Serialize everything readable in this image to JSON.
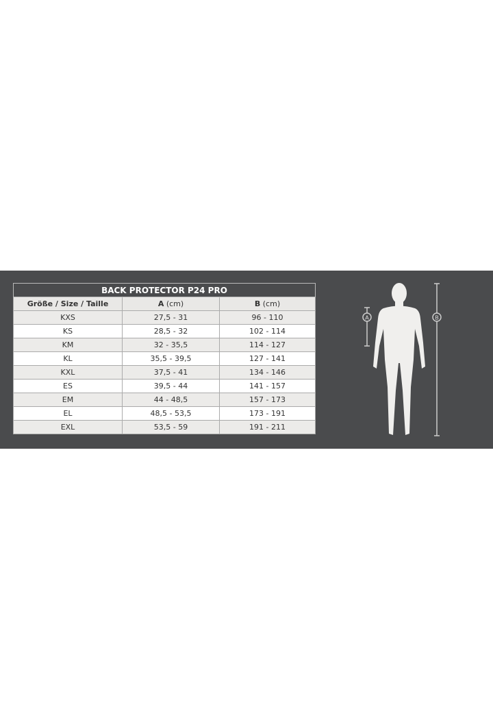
{
  "table": {
    "title": "BACK PROTECTOR P24 PRO",
    "headers": {
      "size": "Größe / Size / Taille",
      "a_bold": "A",
      "a_unit": "(cm)",
      "b_bold": "B",
      "b_unit": "(cm)"
    },
    "rows": [
      {
        "size": "KXS",
        "a": "27,5 - 31",
        "b": "96 - 110"
      },
      {
        "size": "KS",
        "a": "28,5 - 32",
        "b": "102 - 114"
      },
      {
        "size": "KM",
        "a": "32 - 35,5",
        "b": "114 - 127"
      },
      {
        "size": "KL",
        "a": "35,5 - 39,5",
        "b": "127 - 141"
      },
      {
        "size": "KXL",
        "a": "37,5 - 41",
        "b": "134 - 146"
      },
      {
        "size": "ES",
        "a": "39,5 - 44",
        "b": "141 - 157"
      },
      {
        "size": "EM",
        "a": "44 - 48,5",
        "b": "157 - 173"
      },
      {
        "size": "EL",
        "a": "48,5 - 53,5",
        "b": "173 - 191"
      },
      {
        "size": "EXL",
        "a": "53,5 - 59",
        "b": "191 - 211"
      }
    ]
  },
  "figure": {
    "marker_a": "A",
    "marker_b": "B"
  }
}
